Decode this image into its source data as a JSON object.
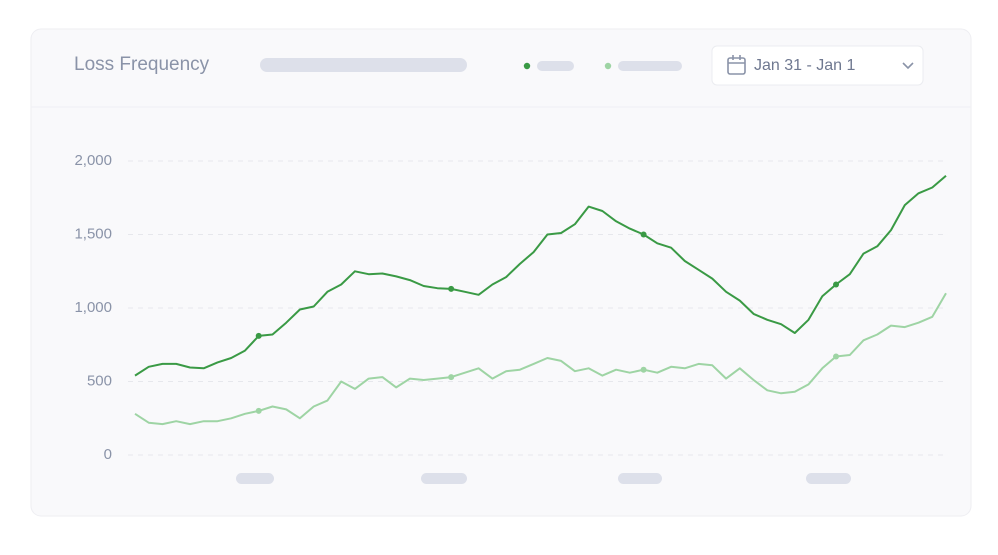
{
  "date_picker": {
    "label": "Jan 31 - Jan 1"
  },
  "chart_data": {
    "type": "line",
    "title": "Loss Frequency",
    "series": [
      {
        "color": "#3a9a45",
        "values": [
          540,
          600,
          620,
          620,
          595,
          590,
          630,
          660,
          710,
          810,
          820,
          900,
          990,
          1010,
          1110,
          1160,
          1250,
          1230,
          1235,
          1215,
          1190,
          1150,
          1135,
          1130,
          1110,
          1090,
          1160,
          1210,
          1300,
          1380,
          1500,
          1510,
          1570,
          1690,
          1660,
          1590,
          1540,
          1500,
          1440,
          1410,
          1320,
          1260,
          1200,
          1110,
          1050,
          960,
          920,
          890,
          830,
          920,
          1080,
          1160,
          1230,
          1370,
          1420,
          1530,
          1700,
          1780,
          1820,
          1900
        ]
      },
      {
        "color": "#9ed4a4",
        "values": [
          280,
          220,
          210,
          230,
          210,
          230,
          230,
          250,
          280,
          300,
          330,
          310,
          250,
          330,
          370,
          500,
          450,
          520,
          530,
          460,
          520,
          510,
          520,
          530,
          560,
          590,
          520,
          570,
          580,
          620,
          660,
          640,
          570,
          590,
          540,
          580,
          560,
          580,
          560,
          600,
          590,
          620,
          610,
          520,
          590,
          510,
          440,
          420,
          430,
          480,
          590,
          670,
          680,
          780,
          820,
          880,
          870,
          900,
          940,
          1100
        ]
      }
    ],
    "ylim": [
      0,
      2000
    ],
    "yticks": [
      0,
      500,
      {
        "value": 1000,
        "label": "1,000"
      },
      {
        "value": 1500,
        "label": "1,500"
      },
      {
        "value": 2000,
        "label": "2,000"
      }
    ],
    "grid": true
  }
}
